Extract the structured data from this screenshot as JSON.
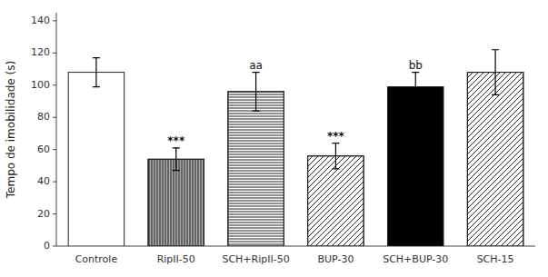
{
  "chart_data": {
    "type": "bar",
    "categories": [
      "Controle",
      "RipII-50",
      "SCH+RipII-50",
      "BUP-30",
      "SCH+BUP-30",
      "SCH-15"
    ],
    "values": [
      108,
      54,
      96,
      56,
      99,
      108
    ],
    "errors": [
      9,
      7,
      12,
      8,
      9,
      14
    ],
    "colors": [
      "white",
      "#aaaaaa",
      "white",
      "white",
      "black",
      "white"
    ],
    "y_label": "Tempo de imobilidade (s)",
    "ylim": [
      0,
      145
    ],
    "yticks": [
      0,
      20,
      40,
      60,
      80,
      100,
      120,
      140
    ],
    "grid": false,
    "annotations": [
      {
        "category": "RipII-50",
        "text": "***"
      },
      {
        "category": "BUP-30",
        "text": "***"
      },
      {
        "category": "SCH+RipII-50",
        "text": "aa"
      },
      {
        "category": "SCH+BUP-30",
        "text": "bb"
      }
    ]
  }
}
